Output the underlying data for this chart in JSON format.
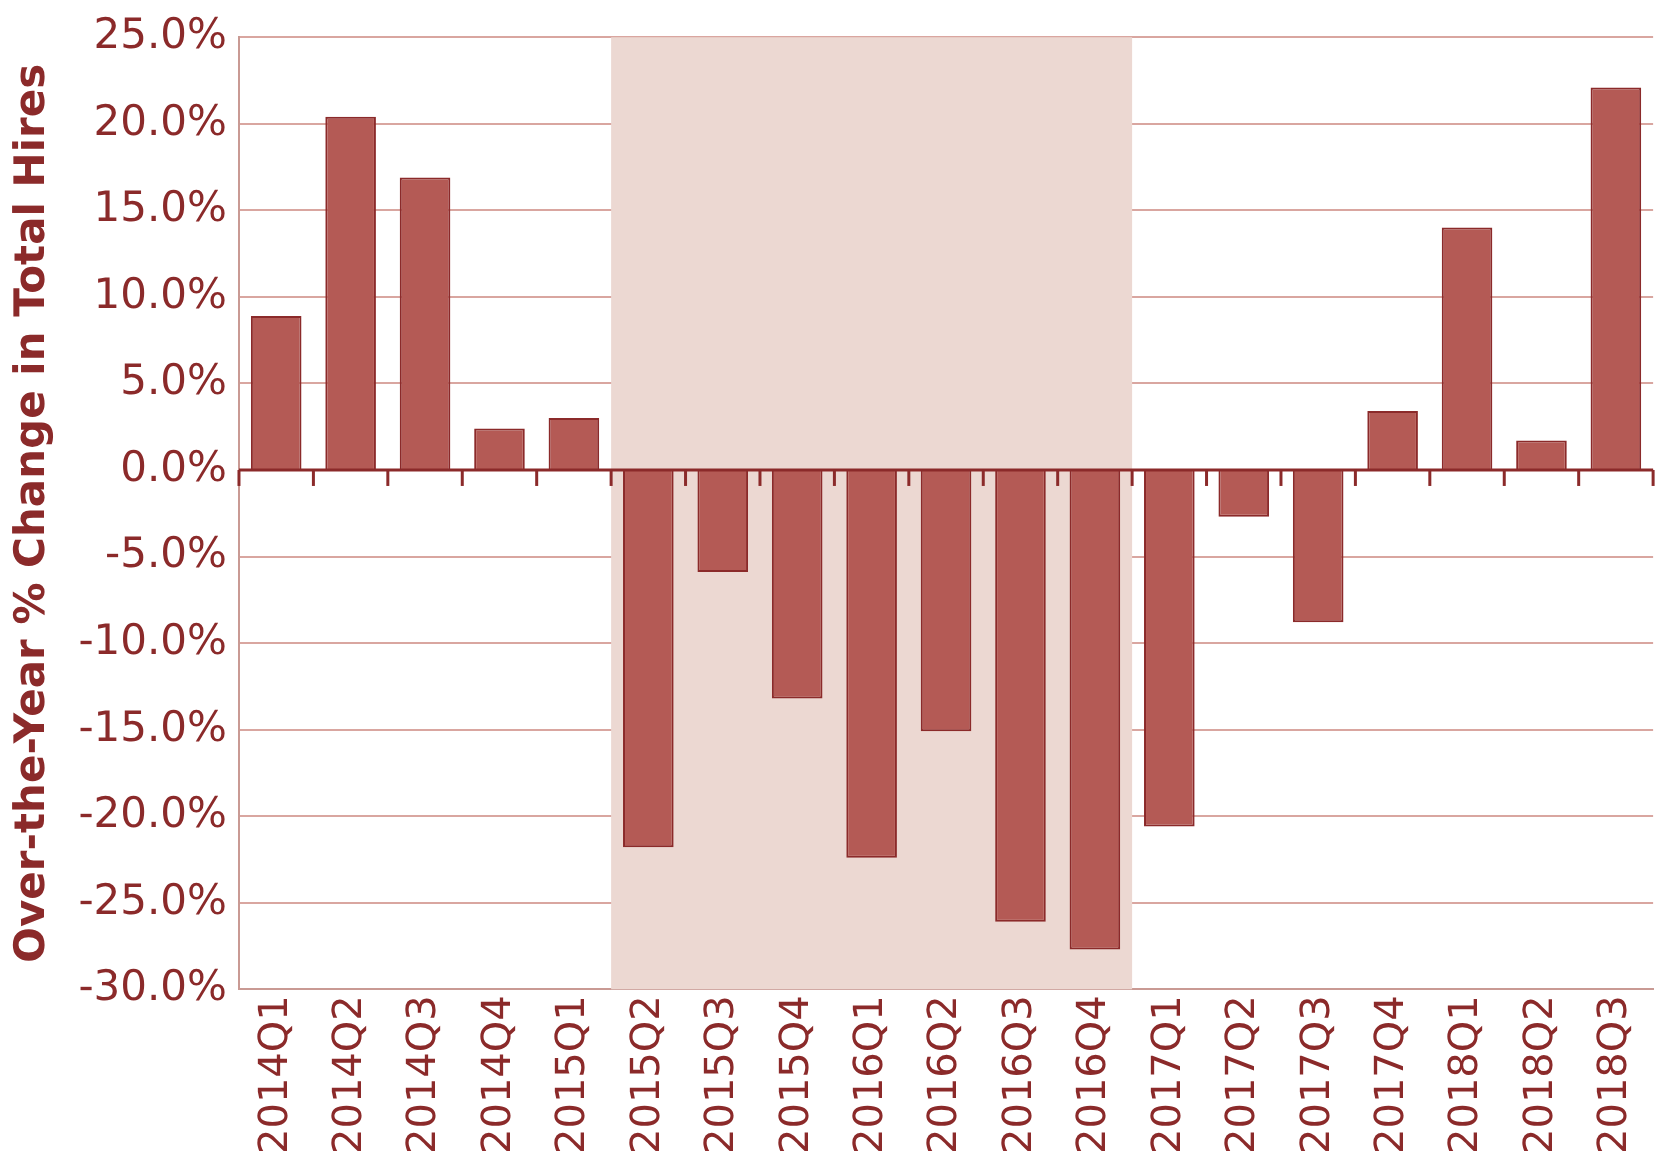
{
  "chart_data": {
    "type": "bar",
    "ylabel": "Over-the-Year % Change in Total Hires",
    "categories": [
      "2014Q1",
      "2014Q2",
      "2014Q3",
      "2014Q4",
      "2015Q1",
      "2015Q2",
      "2015Q3",
      "2015Q4",
      "2016Q1",
      "2016Q2",
      "2016Q3",
      "2016Q4",
      "2017Q1",
      "2017Q2",
      "2017Q3",
      "2017Q4",
      "2018Q1",
      "2018Q2",
      "2018Q3"
    ],
    "values": [
      8.9,
      20.4,
      16.9,
      2.4,
      3.0,
      -21.8,
      -5.9,
      -13.2,
      -22.4,
      -15.1,
      -26.1,
      -27.7,
      -20.6,
      -2.7,
      -8.8,
      3.4,
      14.0,
      1.7,
      22.1
    ],
    "color": "#b45a55",
    "ylim": [
      -30,
      25
    ],
    "yticks": [
      {
        "value": -30,
        "label": "-30.0%"
      },
      {
        "value": -25,
        "label": "-25.0%"
      },
      {
        "value": -20,
        "label": "-20.0%"
      },
      {
        "value": -15,
        "label": "-15.0%"
      },
      {
        "value": -10,
        "label": "-10.0%"
      },
      {
        "value": -5,
        "label": "-5.0%"
      },
      {
        "value": 0,
        "label": "0.0%"
      },
      {
        "value": 5,
        "label": "5.0%"
      },
      {
        "value": 10,
        "label": "10.0%"
      },
      {
        "value": 15,
        "label": "15.0%"
      },
      {
        "value": 20,
        "label": "20.0%"
      },
      {
        "value": 25,
        "label": "25.0%"
      }
    ],
    "bands": [
      {
        "axis": "x",
        "from": "2015Q2",
        "to": "2016Q4",
        "color": "#ecd8d2"
      }
    ],
    "ref_lines": [
      {
        "axis": "y",
        "value": 0,
        "color": "#8b2a2a"
      }
    ],
    "grid": "y",
    "legend": false
  }
}
